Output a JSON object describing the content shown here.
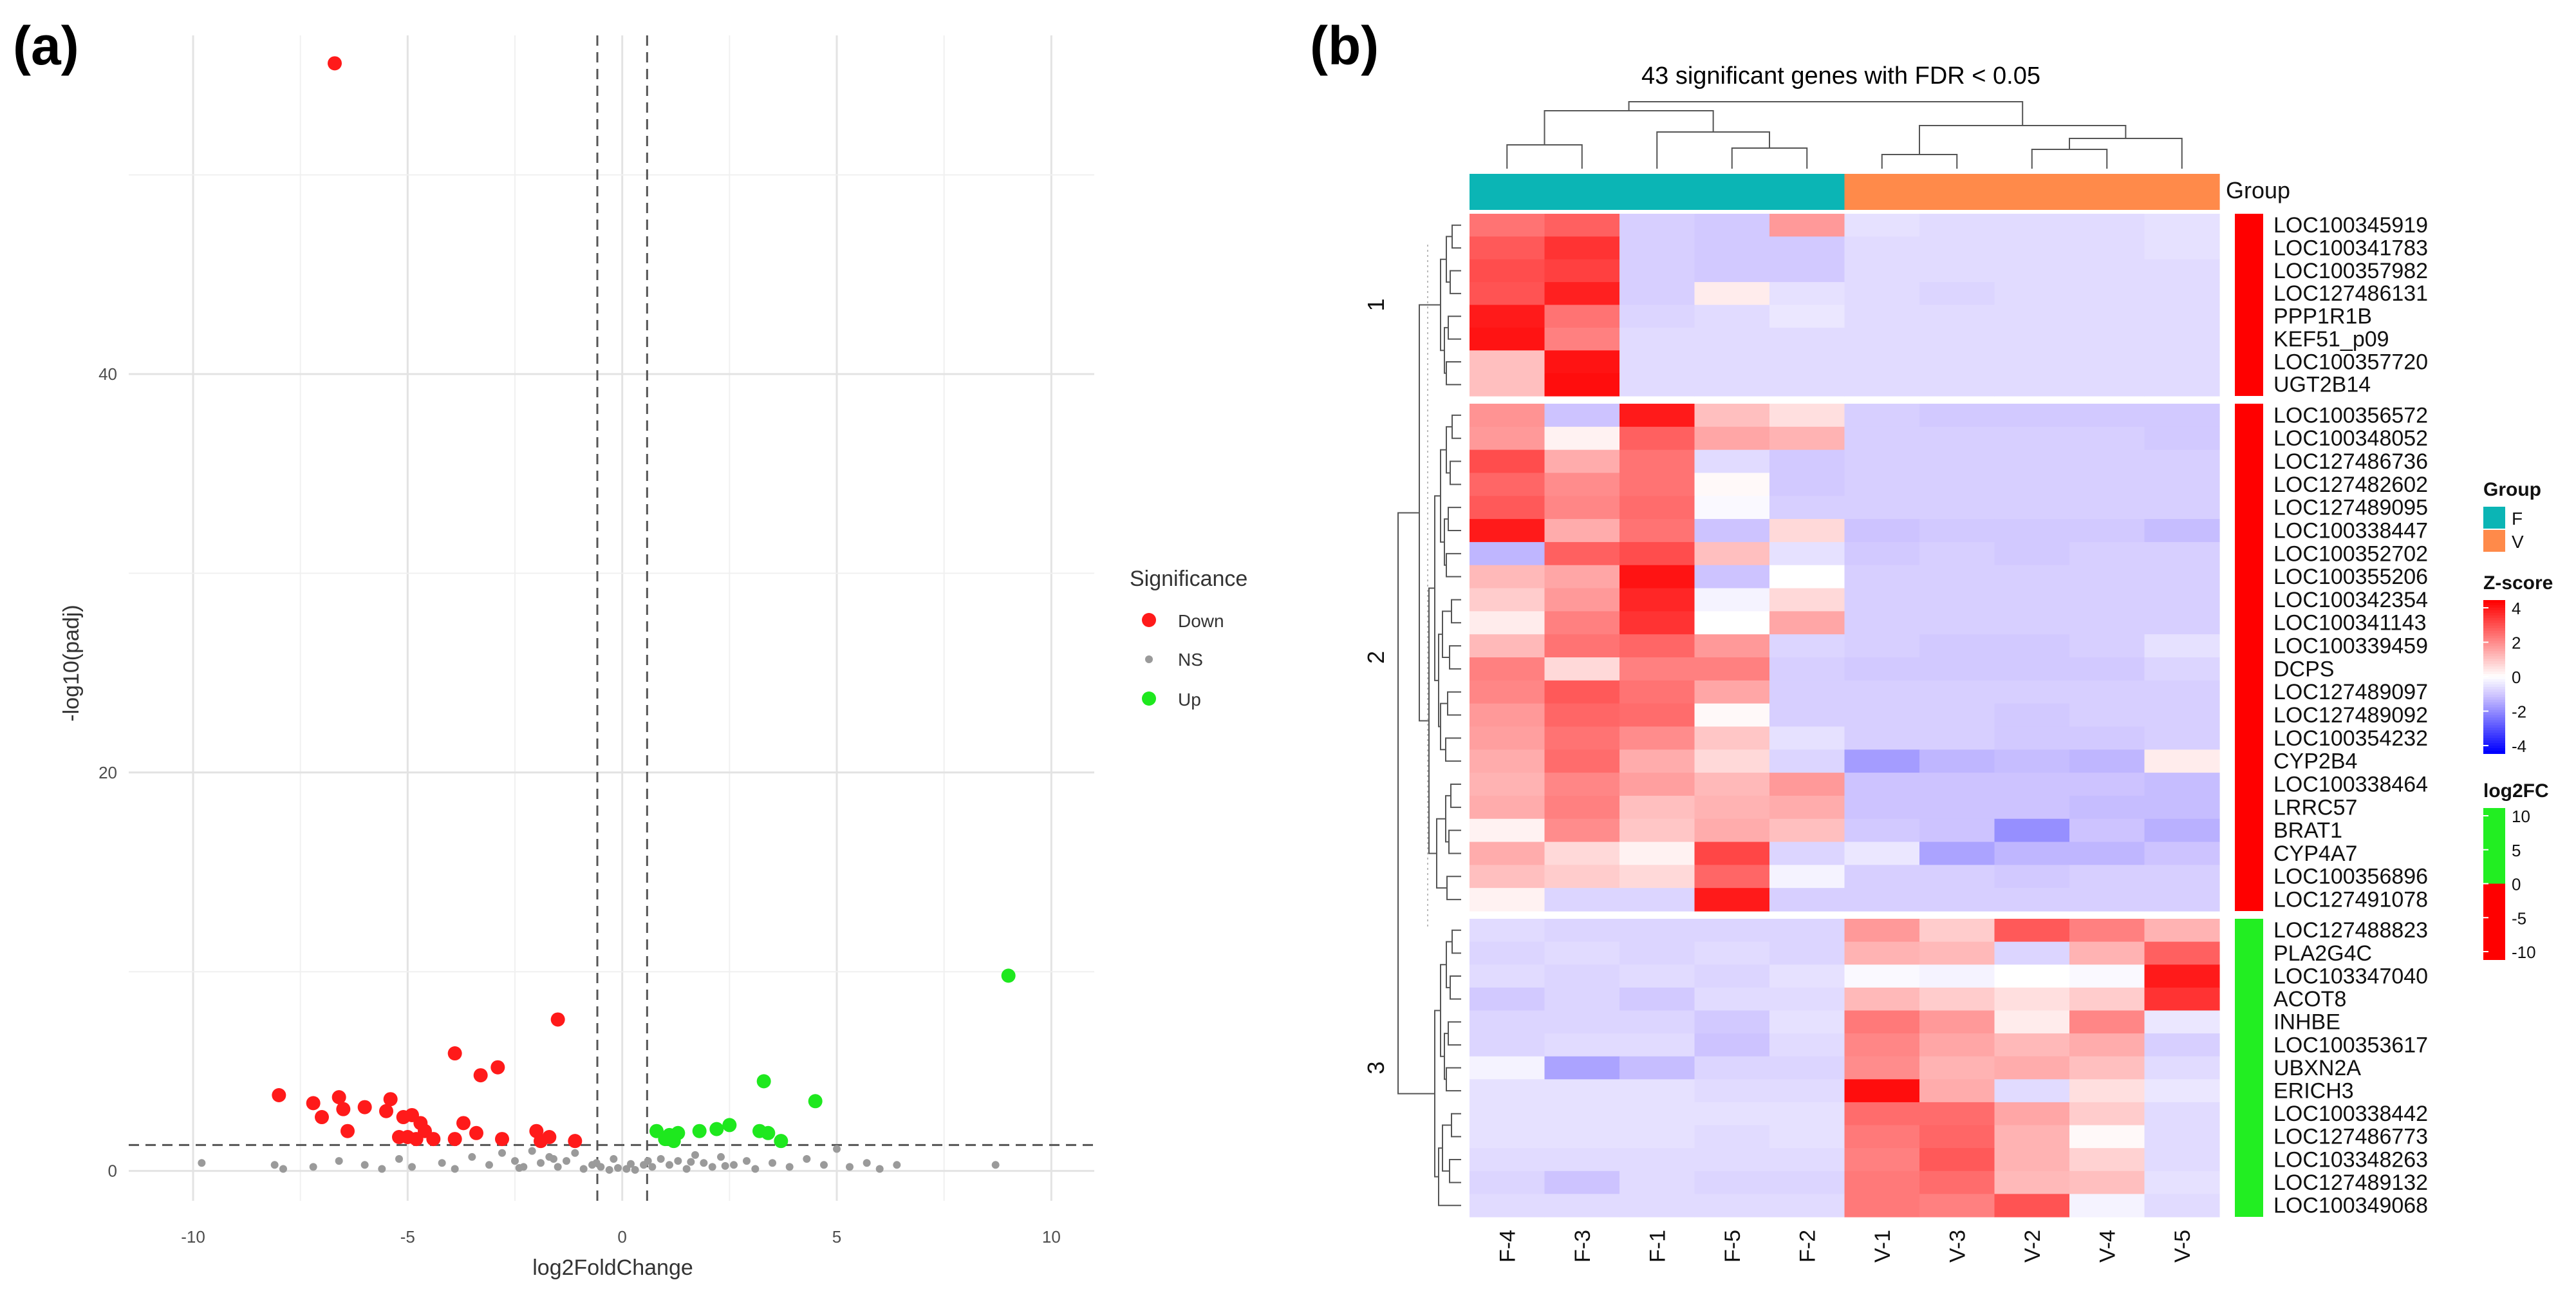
{
  "panel_labels": {
    "a": "(a)",
    "b": "(b)"
  },
  "colors": {
    "down": "#ff1a1a",
    "ns": "#9a9a9a",
    "up": "#1ee81e",
    "group_F": "#0bb5b5",
    "group_V": "#ff8a4a",
    "cluster_red": "#ff0000",
    "cluster_green": "#22ee22"
  },
  "chart_data": [
    {
      "type": "scatter",
      "title": "",
      "xlabel": "log2FoldChange",
      "ylabel": "-log10(padj)",
      "xlim": [
        -11.5,
        11.0
      ],
      "ylim": [
        -1.5,
        57
      ],
      "x_ticks": [
        "-10",
        "-5",
        "0",
        "5",
        "10"
      ],
      "x_tick_values": [
        -10,
        -5,
        0,
        5,
        10
      ],
      "y_ticks": [
        "0",
        "20",
        "40"
      ],
      "y_tick_values": [
        0,
        20,
        40
      ],
      "vlines": [
        -0.58,
        0.58
      ],
      "hline": 1.3,
      "legend": {
        "title": "Significance",
        "items": [
          "Down",
          "NS",
          "Up"
        ]
      },
      "series": [
        {
          "name": "Down",
          "points": [
            [
              -6.7,
              55.6
            ],
            [
              -1.5,
              7.6
            ],
            [
              -3.9,
              5.9
            ],
            [
              -2.9,
              5.2
            ],
            [
              -3.3,
              4.8
            ],
            [
              -8.0,
              3.8
            ],
            [
              -7.2,
              3.4
            ],
            [
              -6.6,
              3.7
            ],
            [
              -6.5,
              3.1
            ],
            [
              -6.0,
              3.2
            ],
            [
              -5.5,
              3.0
            ],
            [
              -5.4,
              3.6
            ],
            [
              -5.1,
              2.7
            ],
            [
              -4.9,
              2.8
            ],
            [
              -4.7,
              2.4
            ],
            [
              -5.0,
              1.7
            ],
            [
              -5.2,
              1.7
            ],
            [
              -4.6,
              2.0
            ],
            [
              -4.4,
              1.6
            ],
            [
              -7.0,
              2.7
            ],
            [
              -6.4,
              2.0
            ],
            [
              -3.7,
              2.4
            ],
            [
              -3.4,
              1.9
            ],
            [
              -2.8,
              1.6
            ],
            [
              -3.9,
              1.6
            ],
            [
              -2.0,
              2.0
            ],
            [
              -1.7,
              1.7
            ],
            [
              -1.1,
              1.5
            ],
            [
              -1.9,
              1.5
            ],
            [
              -4.8,
              1.6
            ]
          ]
        },
        {
          "name": "Up",
          "points": [
            [
              9.0,
              9.8
            ],
            [
              3.3,
              4.5
            ],
            [
              4.5,
              3.5
            ],
            [
              0.8,
              2.0
            ],
            [
              1.1,
              1.8
            ],
            [
              1.3,
              1.9
            ],
            [
              1.0,
              1.6
            ],
            [
              1.2,
              1.5
            ],
            [
              1.8,
              2.0
            ],
            [
              2.2,
              2.1
            ],
            [
              2.5,
              2.3
            ],
            [
              3.2,
              2.0
            ],
            [
              3.4,
              1.9
            ],
            [
              3.7,
              1.5
            ]
          ]
        },
        {
          "name": "NS",
          "points": [
            [
              -9.8,
              0.4
            ],
            [
              -8.1,
              0.3
            ],
            [
              -7.9,
              0.1
            ],
            [
              -7.2,
              0.2
            ],
            [
              -6.6,
              0.5
            ],
            [
              -6.0,
              0.3
            ],
            [
              -5.6,
              0.1
            ],
            [
              -5.2,
              0.6
            ],
            [
              -4.9,
              0.2
            ],
            [
              -4.2,
              0.4
            ],
            [
              -3.9,
              0.1
            ],
            [
              -3.5,
              0.7
            ],
            [
              -3.1,
              0.3
            ],
            [
              -2.8,
              0.9
            ],
            [
              -2.5,
              0.5
            ],
            [
              -2.3,
              0.2
            ],
            [
              -2.1,
              1.0
            ],
            [
              -1.9,
              0.4
            ],
            [
              -1.7,
              0.7
            ],
            [
              -1.5,
              0.2
            ],
            [
              -1.3,
              0.5
            ],
            [
              -1.1,
              0.9
            ],
            [
              -0.9,
              0.1
            ],
            [
              -0.7,
              0.3
            ],
            [
              -0.5,
              0.2
            ],
            [
              -0.3,
              0.05
            ],
            [
              -0.1,
              0.15
            ],
            [
              0.1,
              0.1
            ],
            [
              0.3,
              0.05
            ],
            [
              0.5,
              0.3
            ],
            [
              0.7,
              0.2
            ],
            [
              0.9,
              0.6
            ],
            [
              1.1,
              0.3
            ],
            [
              1.3,
              0.5
            ],
            [
              1.5,
              0.1
            ],
            [
              1.7,
              0.8
            ],
            [
              1.9,
              0.4
            ],
            [
              2.1,
              0.2
            ],
            [
              2.3,
              0.7
            ],
            [
              2.6,
              0.3
            ],
            [
              2.9,
              0.5
            ],
            [
              3.1,
              0.1
            ],
            [
              3.5,
              0.4
            ],
            [
              3.9,
              0.2
            ],
            [
              4.3,
              0.6
            ],
            [
              4.7,
              0.3
            ],
            [
              5.0,
              1.1
            ],
            [
              5.3,
              0.2
            ],
            [
              5.7,
              0.4
            ],
            [
              6.0,
              0.1
            ],
            [
              6.4,
              0.3
            ],
            [
              8.7,
              0.3
            ],
            [
              -0.6,
              0.4
            ],
            [
              0.6,
              0.5
            ],
            [
              -1.6,
              0.6
            ],
            [
              1.6,
              0.45
            ],
            [
              -2.4,
              0.15
            ],
            [
              2.4,
              0.25
            ],
            [
              -0.2,
              0.6
            ],
            [
              0.2,
              0.35
            ]
          ]
        }
      ]
    },
    {
      "type": "heatmap",
      "title": "43 significant genes with FDR < 0.05",
      "columns": [
        "F-4",
        "F-3",
        "F-1",
        "F-5",
        "F-2",
        "V-1",
        "V-3",
        "V-2",
        "V-4",
        "V-5"
      ],
      "column_groups": [
        "F",
        "F",
        "F",
        "F",
        "F",
        "V",
        "V",
        "V",
        "V",
        "V"
      ],
      "annotation_label": "Group",
      "clusters": [
        {
          "label": "1",
          "log2FC_sign": "down",
          "genes": [
            "LOC100345919",
            "LOC100341783",
            "LOC100357982",
            "LOC127486131",
            "PPP1R1B",
            "KEF51_p09",
            "LOC100357720",
            "UGT2B14"
          ]
        },
        {
          "label": "2",
          "log2FC_sign": "down",
          "genes": [
            "LOC100356572",
            "LOC100348052",
            "LOC127486736",
            "LOC127482602",
            "LOC127489095",
            "LOC100338447",
            "LOC100352702",
            "LOC100355206",
            "LOC100342354",
            "LOC100341143",
            "LOC100339459",
            "DCPS",
            "LOC127489097",
            "LOC127489092",
            "LOC100354232",
            "CYP2B4",
            "LOC100338464",
            "LRRC57",
            "BRAT1",
            "CYP4A7",
            "LOC100356896",
            "LOC127491078"
          ]
        },
        {
          "label": "3",
          "log2FC_sign": "up",
          "genes": [
            "LOC127488823",
            "PLA2G4C",
            "LOC103347040",
            "ACOT8",
            "INHBE",
            "LOC100353617",
            "UBXN2A",
            "ERICH3",
            "LOC100338442",
            "LOC127486773",
            "LOC103348263",
            "LOC127489132",
            "LOC100349068"
          ]
        }
      ],
      "values": [
        [
          2.2,
          2.5,
          -0.8,
          -0.9,
          1.6,
          -0.5,
          -0.6,
          -0.6,
          -0.6,
          -0.5
        ],
        [
          2.6,
          3.2,
          -0.8,
          -0.9,
          -0.9,
          -0.6,
          -0.6,
          -0.6,
          -0.6,
          -0.5
        ],
        [
          2.8,
          3.0,
          -0.8,
          -0.9,
          -0.9,
          -0.6,
          -0.6,
          -0.6,
          -0.6,
          -0.6
        ],
        [
          2.7,
          3.5,
          -0.8,
          0.3,
          -0.5,
          -0.6,
          -0.7,
          -0.6,
          -0.6,
          -0.6
        ],
        [
          3.6,
          2.2,
          -0.7,
          -0.6,
          -0.4,
          -0.6,
          -0.6,
          -0.6,
          -0.6,
          -0.6
        ],
        [
          3.7,
          2.0,
          -0.6,
          -0.6,
          -0.6,
          -0.6,
          -0.6,
          -0.6,
          -0.6,
          -0.6
        ],
        [
          1.0,
          3.7,
          -0.6,
          -0.6,
          -0.6,
          -0.6,
          -0.6,
          -0.6,
          -0.6,
          -0.6
        ],
        [
          1.0,
          3.8,
          -0.6,
          -0.6,
          -0.6,
          -0.6,
          -0.6,
          -0.6,
          -0.6,
          -0.6
        ],
        [
          1.7,
          -1.0,
          3.6,
          1.0,
          0.5,
          -0.8,
          -0.9,
          -0.9,
          -0.9,
          -0.9
        ],
        [
          1.6,
          0.2,
          2.5,
          1.4,
          1.2,
          -0.8,
          -0.8,
          -0.8,
          -0.8,
          -0.9
        ],
        [
          2.8,
          1.3,
          2.2,
          -0.6,
          -0.9,
          -0.8,
          -0.8,
          -0.8,
          -0.8,
          -0.8
        ],
        [
          2.4,
          1.8,
          2.2,
          0.1,
          -0.9,
          -0.8,
          -0.8,
          -0.8,
          -0.8,
          -0.8
        ],
        [
          2.6,
          1.9,
          2.3,
          -0.1,
          -0.8,
          -0.8,
          -0.8,
          -0.8,
          -0.8,
          -0.8
        ],
        [
          3.6,
          1.3,
          2.2,
          -1.0,
          0.6,
          -1.0,
          -0.9,
          -0.9,
          -0.9,
          -1.1
        ],
        [
          -1.2,
          2.5,
          2.8,
          1.0,
          -0.5,
          -0.9,
          -0.8,
          -0.9,
          -0.8,
          -0.8
        ],
        [
          1.1,
          1.4,
          3.7,
          -1.0,
          0.0,
          -0.8,
          -0.8,
          -0.8,
          -0.8,
          -0.8
        ],
        [
          0.8,
          1.6,
          3.4,
          -0.2,
          0.6,
          -0.8,
          -0.8,
          -0.8,
          -0.8,
          -0.8
        ],
        [
          0.3,
          2.0,
          3.2,
          0.0,
          1.4,
          -0.8,
          -0.8,
          -0.8,
          -0.8,
          -0.8
        ],
        [
          1.1,
          2.2,
          2.4,
          1.6,
          -0.7,
          -0.8,
          -0.9,
          -0.9,
          -0.8,
          -0.5
        ],
        [
          2.0,
          0.6,
          2.0,
          2.0,
          -0.8,
          -0.9,
          -0.9,
          -0.9,
          -0.9,
          -0.7
        ],
        [
          1.9,
          2.6,
          2.2,
          1.4,
          -0.8,
          -0.8,
          -0.8,
          -0.8,
          -0.8,
          -0.8
        ],
        [
          1.6,
          2.4,
          2.3,
          0.1,
          -0.8,
          -0.8,
          -0.8,
          -0.9,
          -0.8,
          -0.8
        ],
        [
          1.5,
          2.2,
          1.8,
          0.9,
          -0.5,
          -0.8,
          -0.8,
          -0.9,
          -0.9,
          -0.8
        ],
        [
          1.3,
          2.3,
          1.3,
          0.6,
          -0.7,
          -1.6,
          -1.2,
          -1.1,
          -1.2,
          0.3
        ],
        [
          1.2,
          1.9,
          1.5,
          1.1,
          1.6,
          -1.0,
          -1.0,
          -1.0,
          -1.0,
          -1.1
        ],
        [
          1.3,
          2.0,
          1.0,
          1.2,
          1.3,
          -1.0,
          -1.0,
          -1.0,
          -1.1,
          -1.1
        ],
        [
          0.2,
          1.8,
          0.9,
          1.3,
          1.0,
          -0.9,
          -1.0,
          -1.8,
          -1.0,
          -1.3
        ],
        [
          1.3,
          0.6,
          0.2,
          2.9,
          -0.7,
          -0.4,
          -1.5,
          -1.2,
          -1.2,
          -1.0
        ],
        [
          1.0,
          0.8,
          0.6,
          2.4,
          -0.2,
          -0.8,
          -0.8,
          -0.9,
          -0.8,
          -0.8
        ],
        [
          0.2,
          -0.7,
          -0.7,
          3.6,
          -0.8,
          -0.8,
          -0.8,
          -0.8,
          -0.8,
          -0.8
        ],
        [
          -0.6,
          -0.7,
          -0.7,
          -0.7,
          -0.7,
          1.6,
          0.8,
          2.6,
          2.0,
          1.2
        ],
        [
          -0.7,
          -0.6,
          -0.7,
          -0.6,
          -0.7,
          1.2,
          1.1,
          -0.7,
          1.2,
          2.5
        ],
        [
          -0.6,
          -0.7,
          -0.6,
          -0.7,
          -0.5,
          -0.1,
          -0.2,
          0.0,
          -0.1,
          3.6
        ],
        [
          -0.9,
          -0.7,
          -0.9,
          -0.6,
          -0.6,
          1.1,
          0.8,
          0.5,
          0.8,
          3.2
        ],
        [
          -0.7,
          -0.7,
          -0.7,
          -0.9,
          -0.5,
          2.1,
          1.6,
          0.3,
          1.9,
          -0.4
        ],
        [
          -0.7,
          -0.6,
          -0.6,
          -1.0,
          -0.6,
          1.9,
          1.4,
          1.1,
          1.3,
          -0.8
        ],
        [
          -0.2,
          -1.5,
          -1.1,
          -0.7,
          -0.7,
          1.8,
          1.2,
          1.3,
          1.0,
          -0.6
        ],
        [
          -0.5,
          -0.5,
          -0.5,
          -0.6,
          -0.6,
          3.8,
          1.3,
          -0.6,
          0.5,
          -0.4
        ],
        [
          -0.5,
          -0.5,
          -0.5,
          -0.5,
          -0.5,
          2.3,
          2.3,
          1.4,
          0.8,
          -0.6
        ],
        [
          -0.5,
          -0.5,
          -0.5,
          -0.6,
          -0.5,
          2.1,
          2.4,
          1.2,
          0.1,
          -0.6
        ],
        [
          -0.6,
          -0.6,
          -0.6,
          -0.6,
          -0.6,
          2.0,
          2.6,
          1.2,
          0.7,
          -0.6
        ],
        [
          -0.7,
          -1.0,
          -0.6,
          -0.7,
          -0.7,
          2.1,
          2.3,
          1.1,
          1.0,
          -0.5
        ],
        [
          -0.6,
          -0.6,
          -0.6,
          -0.6,
          -0.6,
          2.1,
          2.0,
          2.7,
          -0.2,
          -0.6
        ]
      ],
      "legends": {
        "group": {
          "title": "Group",
          "items": [
            "F",
            "V"
          ]
        },
        "zscore": {
          "title": "Z-score",
          "ticks": [
            "4",
            "2",
            "0",
            "-2",
            "-4"
          ],
          "range": [
            -4,
            4
          ]
        },
        "log2fc": {
          "title": "log2FC",
          "ticks": [
            "10",
            "5",
            "0",
            "-5",
            "-10"
          ],
          "range": [
            -10,
            10
          ]
        }
      }
    }
  ]
}
